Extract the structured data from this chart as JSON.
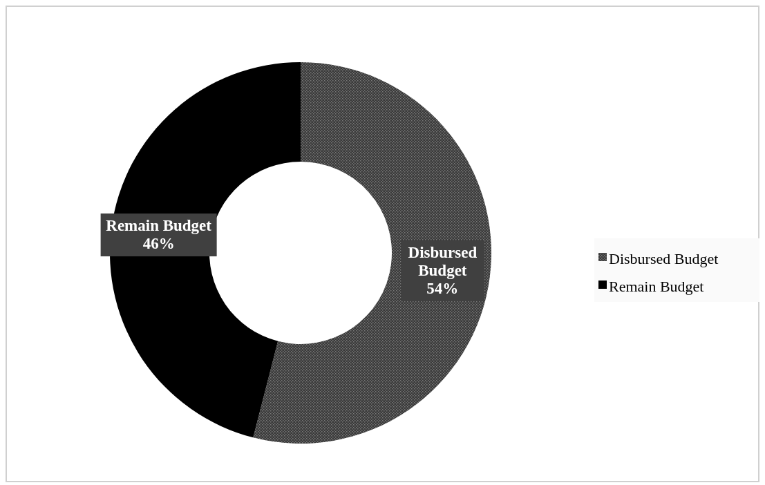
{
  "chart_data": {
    "type": "donut",
    "categories": [
      "Disbursed Budget",
      "Remain Budget"
    ],
    "values": [
      54,
      46
    ],
    "value_labels": [
      "54%",
      "46%"
    ],
    "colors": [
      "#3a3a3a",
      "#000000"
    ],
    "legend": "right"
  }
}
